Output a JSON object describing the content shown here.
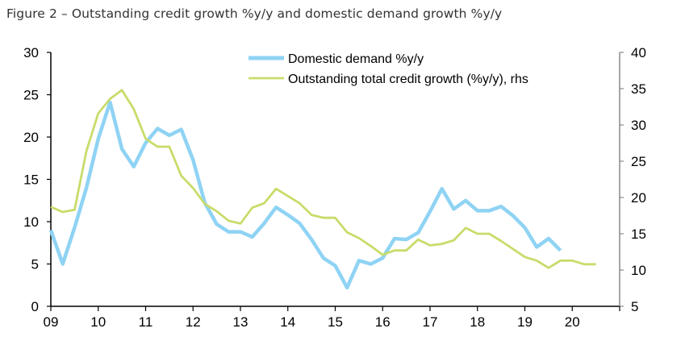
{
  "chart_data": {
    "type": "line",
    "title": "Figure 2 – Outstanding credit growth %y/y and domestic demand growth %y/y",
    "xlabel": "",
    "ylabel": "",
    "y2label": "",
    "xlim": [
      2009,
      2021
    ],
    "ylim": [
      0,
      30
    ],
    "y2lim": [
      5,
      40
    ],
    "x_ticks": [
      "09",
      "10",
      "11",
      "12",
      "13",
      "14",
      "15",
      "16",
      "17",
      "18",
      "19",
      "20"
    ],
    "y_ticks": [
      "0",
      "5",
      "10",
      "15",
      "20",
      "25",
      "30"
    ],
    "y2_ticks": [
      "5",
      "10",
      "15",
      "20",
      "25",
      "30",
      "35",
      "40"
    ],
    "grid": false,
    "legend": "top-center",
    "series": [
      {
        "name": "Domestic demand %y/y",
        "axis": "left",
        "color": "#8fd3f4",
        "x": [
          2009,
          2009.25,
          2009.5,
          2009.75,
          2010,
          2010.25,
          2010.5,
          2010.75,
          2011,
          2011.25,
          2011.5,
          2011.75,
          2012,
          2012.25,
          2012.5,
          2012.75,
          2013,
          2013.25,
          2013.5,
          2013.75,
          2014,
          2014.25,
          2014.5,
          2014.75,
          2015,
          2015.25,
          2015.5,
          2015.75,
          2016,
          2016.25,
          2016.5,
          2016.75,
          2017,
          2017.25,
          2017.5,
          2017.75,
          2018,
          2018.25,
          2018.5,
          2018.75,
          2019,
          2019.25,
          2019.5,
          2019.75
        ],
        "values": [
          9.0,
          5.0,
          9.3,
          14.0,
          19.8,
          24.1,
          18.6,
          16.5,
          19.3,
          21.0,
          20.2,
          20.9,
          17.3,
          12.2,
          9.7,
          8.8,
          8.8,
          8.2,
          9.8,
          11.7,
          10.8,
          9.8,
          7.9,
          5.7,
          4.8,
          2.2,
          5.4,
          5.0,
          5.7,
          8.0,
          7.9,
          8.7,
          11.2,
          13.9,
          11.5,
          12.5,
          11.3,
          11.3,
          11.8,
          10.7,
          9.3,
          7.0,
          8.0,
          6.6
        ]
      },
      {
        "name": "Outstanding total credit growth (%y/y), rhs",
        "axis": "right",
        "color": "#c8dc6a",
        "x": [
          2009,
          2009.25,
          2009.5,
          2009.75,
          2010,
          2010.25,
          2010.5,
          2010.75,
          2011,
          2011.25,
          2011.5,
          2011.75,
          2012,
          2012.25,
          2012.5,
          2012.75,
          2013,
          2013.25,
          2013.5,
          2013.75,
          2014,
          2014.25,
          2014.5,
          2014.75,
          2015,
          2015.25,
          2015.5,
          2015.75,
          2016,
          2016.25,
          2016.5,
          2016.75,
          2017,
          2017.25,
          2017.5,
          2017.75,
          2018,
          2018.25,
          2018.5,
          2018.75,
          2019,
          2019.25,
          2019.5,
          2019.75,
          2020,
          2020.25,
          2020.5
        ],
        "values": [
          18.7,
          18.0,
          18.3,
          26.4,
          31.6,
          33.6,
          34.8,
          32.2,
          28.1,
          27.0,
          27.0,
          23.0,
          21.3,
          19.1,
          18.1,
          16.8,
          16.4,
          18.6,
          19.2,
          21.2,
          20.2,
          19.2,
          17.6,
          17.2,
          17.2,
          15.2,
          14.4,
          13.3,
          12.1,
          12.7,
          12.7,
          14.2,
          13.4,
          13.6,
          14.1,
          15.8,
          15.0,
          15.0,
          14.0,
          12.9,
          11.8,
          11.3,
          10.3,
          11.3,
          11.3,
          10.8,
          10.8
        ]
      }
    ]
  }
}
